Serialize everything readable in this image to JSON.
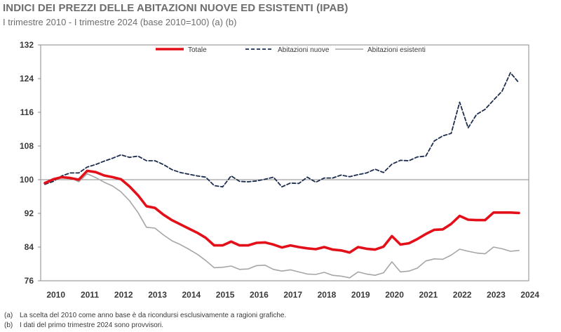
{
  "header": {
    "title": "INDICI DEI PREZZI DELLE ABITAZIONI NUOVE ED ESISTENTI (IPAB)",
    "subtitle": "I trimestre 2010 - I trimestre 2024 (base 2010=100) (a) (b)"
  },
  "notes": [
    {
      "key": "(a)",
      "text": "La scelta del 2010 come anno base è da ricondursi esclusivamente a ragioni grafiche."
    },
    {
      "key": "(b)",
      "text": "I dati del primo trimestre 2024 sono provvisori."
    }
  ],
  "chart_data": {
    "type": "line",
    "title": "INDICI DEI PREZZI DELLE ABITAZIONI NUOVE ED ESISTENTI (IPAB)",
    "ylim": [
      76,
      132
    ],
    "yticks": [
      76,
      84,
      92,
      100,
      108,
      116,
      124,
      132
    ],
    "reference_line": 100,
    "grid": false,
    "legend": "top",
    "x_labels": [
      "2010",
      "2011",
      "2012",
      "2013",
      "2014",
      "2015",
      "2016",
      "2017",
      "2018",
      "2019",
      "2020",
      "2021",
      "2022",
      "2023",
      "2024"
    ],
    "x": [
      "2010-Q1",
      "2010-Q2",
      "2010-Q3",
      "2010-Q4",
      "2011-Q1",
      "2011-Q2",
      "2011-Q3",
      "2011-Q4",
      "2012-Q1",
      "2012-Q2",
      "2012-Q3",
      "2012-Q4",
      "2013-Q1",
      "2013-Q2",
      "2013-Q3",
      "2013-Q4",
      "2014-Q1",
      "2014-Q2",
      "2014-Q3",
      "2014-Q4",
      "2015-Q1",
      "2015-Q2",
      "2015-Q3",
      "2015-Q4",
      "2016-Q1",
      "2016-Q2",
      "2016-Q3",
      "2016-Q4",
      "2017-Q1",
      "2017-Q2",
      "2017-Q3",
      "2017-Q4",
      "2018-Q1",
      "2018-Q2",
      "2018-Q3",
      "2018-Q4",
      "2019-Q1",
      "2019-Q2",
      "2019-Q3",
      "2019-Q4",
      "2020-Q1",
      "2020-Q2",
      "2020-Q3",
      "2020-Q4",
      "2021-Q1",
      "2021-Q2",
      "2021-Q3",
      "2021-Q4",
      "2022-Q1",
      "2022-Q2",
      "2022-Q3",
      "2022-Q4",
      "2023-Q1",
      "2023-Q2",
      "2023-Q3",
      "2023-Q4",
      "2024-Q1"
    ],
    "series": [
      {
        "name": "Totale",
        "color": "#e3101a",
        "style": "solid-thick",
        "values": [
          99.2,
          100.1,
          100.6,
          100.4,
          100.0,
          102.1,
          101.8,
          101.0,
          100.6,
          100.1,
          98.4,
          96.3,
          93.7,
          93.3,
          91.7,
          90.4,
          89.4,
          88.4,
          87.4,
          86.2,
          84.4,
          84.4,
          85.3,
          84.4,
          84.4,
          85.0,
          85.1,
          84.6,
          83.9,
          84.4,
          84.0,
          83.7,
          83.5,
          84.0,
          83.4,
          83.2,
          82.7,
          84.0,
          83.6,
          83.4,
          84.1,
          86.6,
          84.6,
          84.9,
          85.9,
          87.1,
          88.1,
          88.2,
          89.5,
          91.4,
          90.5,
          90.4,
          90.4,
          92.2,
          92.2,
          92.2,
          92.1
        ]
      },
      {
        "name": "Abitazioni nuove",
        "color": "#1d2d4e",
        "style": "dashed",
        "values": [
          98.9,
          99.6,
          100.9,
          101.6,
          101.6,
          103.0,
          103.6,
          104.4,
          105.1,
          105.9,
          105.3,
          105.6,
          104.5,
          104.5,
          103.6,
          102.4,
          101.7,
          101.3,
          100.9,
          100.6,
          98.6,
          98.3,
          100.9,
          99.6,
          99.5,
          99.7,
          100.1,
          100.6,
          98.3,
          99.2,
          99.1,
          100.6,
          99.4,
          100.4,
          100.4,
          101.1,
          100.7,
          101.2,
          101.6,
          102.5,
          101.7,
          103.7,
          104.6,
          104.5,
          105.4,
          105.6,
          109.2,
          110.4,
          111.0,
          118.4,
          112.3,
          115.5,
          116.7,
          118.9,
          121.0,
          125.4,
          123.0
        ]
      },
      {
        "name": "Abitazioni esistenti",
        "color": "#a6a6a6",
        "style": "solid",
        "values": [
          99.2,
          100.2,
          100.7,
          100.5,
          99.5,
          101.4,
          100.5,
          99.4,
          98.5,
          97.1,
          95.0,
          92.2,
          88.7,
          88.5,
          86.9,
          85.5,
          84.6,
          83.5,
          82.3,
          80.8,
          79.1,
          79.2,
          79.5,
          78.7,
          78.8,
          79.6,
          79.7,
          78.7,
          78.3,
          78.6,
          78.1,
          77.6,
          77.5,
          78.0,
          77.3,
          77.1,
          76.7,
          78.1,
          77.6,
          77.3,
          77.9,
          80.5,
          78.1,
          78.3,
          79.0,
          80.7,
          81.2,
          81.1,
          82.1,
          83.5,
          83.0,
          82.6,
          82.4,
          84.0,
          83.6,
          83.0,
          83.2
        ]
      }
    ]
  }
}
